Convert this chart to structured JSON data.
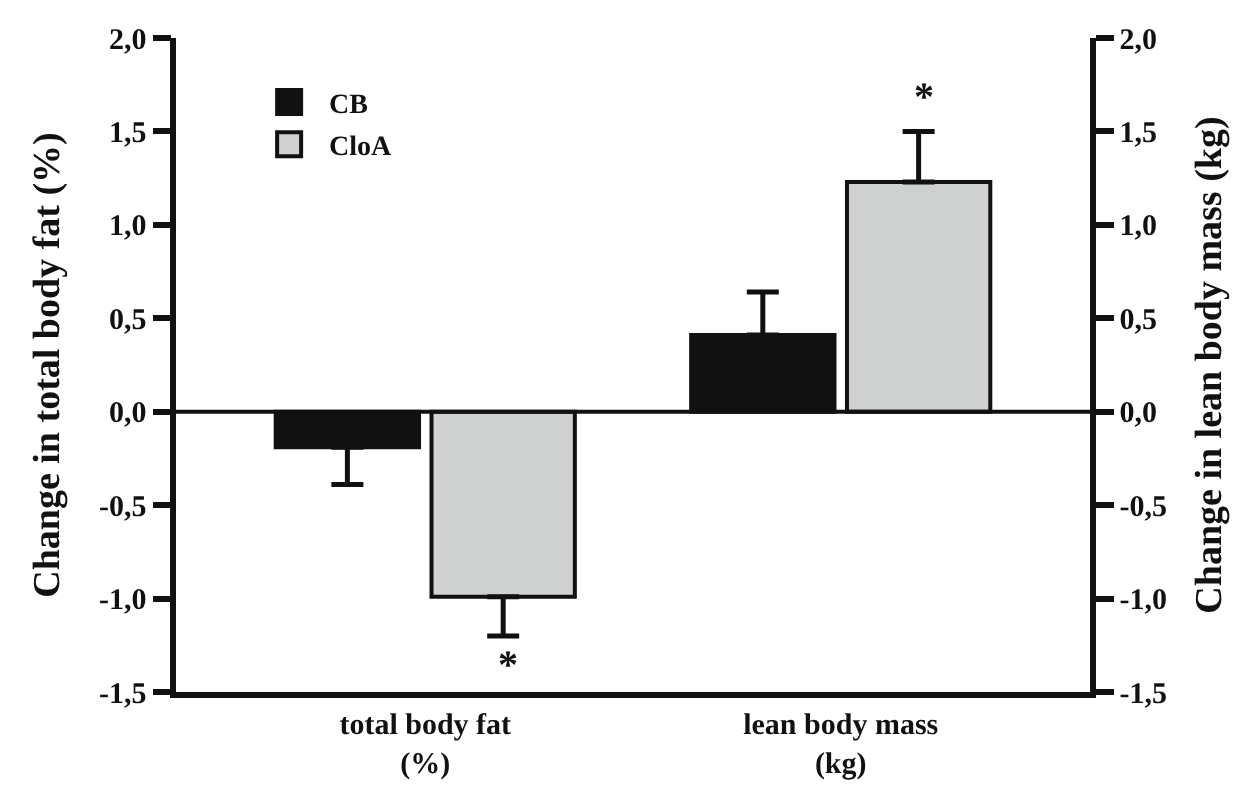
{
  "chart_data": {
    "type": "bar",
    "categories": [
      "total body fat\n(%)",
      "lean body mass\n(kg)"
    ],
    "series": [
      {
        "name": "CB",
        "color": "#111111",
        "values": [
          -0.19,
          0.41
        ],
        "errors": [
          [
            -0.39,
            -0.19
          ],
          [
            0.41,
            0.64
          ]
        ]
      },
      {
        "name": "CloA",
        "color": "#cfd1d0",
        "values": [
          -0.99,
          1.23
        ],
        "errors": [
          [
            -1.2,
            -0.99
          ],
          [
            1.23,
            1.5
          ]
        ]
      }
    ],
    "ylabel": "Change in total body fat (%)",
    "y2label": "Change in lean body mass (kg)",
    "ylim": [
      -1.5,
      2.0
    ],
    "yticks": [
      {
        "value": -1.5,
        "label": "-1,5"
      },
      {
        "value": -1.0,
        "label": "-1,0"
      },
      {
        "value": -0.5,
        "label": "-0,5"
      },
      {
        "value": 0.0,
        "label": "0,0"
      },
      {
        "value": 0.5,
        "label": "0,5"
      },
      {
        "value": 1.0,
        "label": "1,0"
      },
      {
        "value": 1.5,
        "label": "1,5"
      },
      {
        "value": 2.0,
        "label": "2,0"
      }
    ],
    "y2lim": [
      -1.5,
      2.0
    ],
    "y2ticks": [
      {
        "value": -1.5,
        "label": "-1,5"
      },
      {
        "value": -1.0,
        "label": "-1,0"
      },
      {
        "value": -0.5,
        "label": "-0,5"
      },
      {
        "value": 0.0,
        "label": "0,0"
      },
      {
        "value": 0.5,
        "label": "0,5"
      },
      {
        "value": 1.0,
        "label": "1,0"
      },
      {
        "value": 1.5,
        "label": "1,5"
      },
      {
        "value": 2.0,
        "label": "2,0"
      }
    ],
    "annotations": [
      "*",
      "*"
    ],
    "ref_lines": [
      {
        "axis": "y",
        "value": 0,
        "color": "#111111"
      }
    ],
    "legend": "top left"
  }
}
